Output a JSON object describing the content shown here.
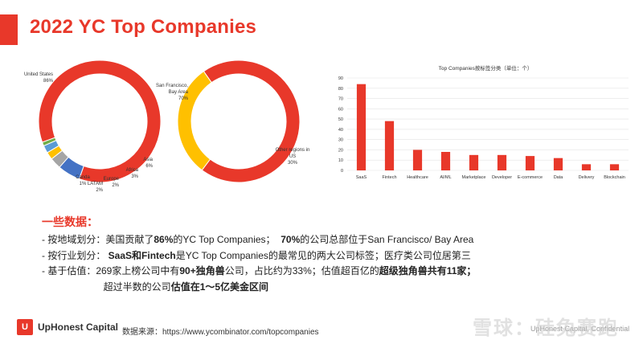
{
  "title": "2022 YC Top Companies",
  "chart_data": [
    {
      "type": "pie",
      "variant": "donut",
      "categories": [
        "United States",
        "Asia",
        "Africa",
        "Europe",
        "LATAM",
        "Canda"
      ],
      "values": [
        86,
        6,
        3,
        2,
        2,
        1
      ],
      "labels": [
        "United States\n86%",
        "Asia\n6%",
        "Africa\n3%",
        "Europe\n2%",
        "LATAM\n2%",
        "Canda\n1%"
      ],
      "colors": [
        "#e8382a",
        "#4472c4",
        "#a5a5a5",
        "#ffc000",
        "#5b9bd5",
        "#70ad47"
      ]
    },
    {
      "type": "pie",
      "variant": "donut",
      "categories": [
        "San Francisco, Bay Area",
        "Other regions in US"
      ],
      "values": [
        70,
        30
      ],
      "labels": [
        "San Francisco,\nBay Area\n70%",
        "Other regions in\nUS\n30%"
      ],
      "colors": [
        "#e8382a",
        "#ffc000"
      ]
    },
    {
      "type": "bar",
      "title": "Top Companies按标签分类（单位：个）",
      "categories": [
        "SaaS",
        "Fintech",
        "Healthcare",
        "AI/ML",
        "Marketplace",
        "Developer",
        "E-commerce",
        "Data",
        "Delivery",
        "Blockchain"
      ],
      "values": [
        84,
        48,
        20,
        18,
        15,
        15,
        14,
        12,
        6,
        6
      ],
      "ylim": [
        0,
        90
      ],
      "yticks": [
        0,
        10,
        20,
        30,
        40,
        50,
        60,
        70,
        80,
        90
      ],
      "grid": true,
      "color": "#e8382a"
    }
  ],
  "section_title": "一些数据：",
  "bullets": [
    {
      "parts": [
        {
          "t": "- 按地域划分：美国贡献了"
        },
        {
          "t": "86%",
          "b": true
        },
        {
          "t": "的YC Top Companies；  "
        },
        {
          "t": "70%",
          "b": true
        },
        {
          "t": "的公司总部位于San Francisco/ Bay Area"
        }
      ]
    },
    {
      "parts": [
        {
          "t": "- 按行业划分： "
        },
        {
          "t": "SaaS和Fintech",
          "b": true
        },
        {
          "t": "是YC Top Companies的最常见的两大公司标签；医疗类公司位居第三"
        }
      ]
    },
    {
      "parts": [
        {
          "t": "- 基于估值：269家上榜公司中有"
        },
        {
          "t": "90+独角兽",
          "b": true
        },
        {
          "t": "公司，占比约为33%；估值超百亿的"
        },
        {
          "t": "超级独角兽共有11家；",
          "b": true
        }
      ]
    },
    {
      "parts": [
        {
          "t": "                       超过半数的公司"
        },
        {
          "t": "估值在1～5亿美金区间",
          "b": true
        }
      ]
    }
  ],
  "footer": {
    "logo_mark": "U",
    "logo_text": "UpHonest Capital",
    "source": "数据来源：https://www.ycombinator.com/topcompanies",
    "confidential": "UpHonest Capital, Confidential",
    "watermark": "雪球：硅兔赛跑"
  }
}
